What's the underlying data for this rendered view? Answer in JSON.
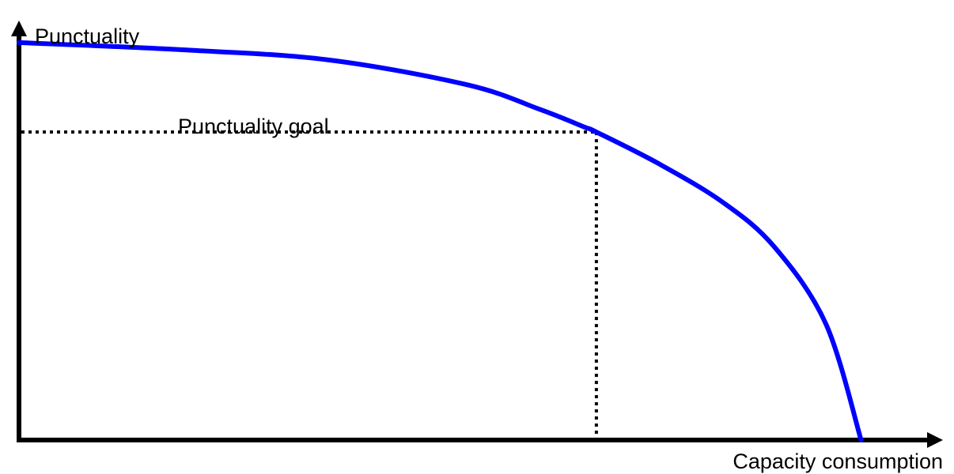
{
  "chart_data": {
    "type": "line",
    "title": "",
    "xlabel": "Capacity consumption",
    "ylabel": "Punctuality",
    "xlim": [
      0,
      100
    ],
    "ylim": [
      0,
      100
    ],
    "grid": false,
    "series": [
      {
        "color": "#0000ff",
        "x": [
          0,
          17.5,
          33.4,
          48.6,
          56.5,
          61.3,
          62.6,
          69.3,
          76.3,
          81.9,
          87.5,
          91.3
        ],
        "y": [
          95.1,
          93.4,
          91.0,
          85.0,
          79.1,
          74.9,
          73.7,
          66.2,
          56.9,
          46.2,
          27.7,
          0
        ]
      }
    ],
    "annotations": [
      {
        "text": "Punctuality goal",
        "x": 62.6,
        "y": 73.7,
        "style": "dotted"
      }
    ]
  }
}
